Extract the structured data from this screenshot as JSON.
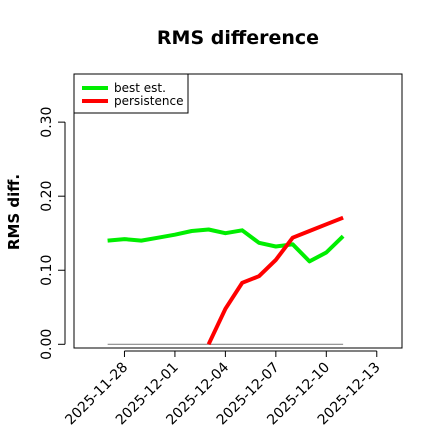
{
  "chart_data": {
    "type": "line",
    "title": "RMS difference",
    "ylabel": "RMS diff.",
    "xlabel": "",
    "ylim": [
      -0.005,
      0.365
    ],
    "xlim": [
      "2025-11-25T00:00",
      "2025-12-14T12:00"
    ],
    "yticks": [
      0.0,
      0.1,
      0.2,
      0.3
    ],
    "ytick_labels": [
      "0.00",
      "0.10",
      "0.20",
      "0.30"
    ],
    "xticks": [
      "2025-11-28",
      "2025-12-01",
      "2025-12-04",
      "2025-12-07",
      "2025-12-10",
      "2025-12-13"
    ],
    "xtick_labels": [
      "2025-11-28",
      "2025-12-01",
      "2025-12-04",
      "2025-12-07",
      "2025-12-10",
      "2025-12-13"
    ],
    "legend_position": "top-left",
    "baseline": {
      "value": 0.0,
      "x_range": [
        "2025-11-27T00:00",
        "2025-12-11T00:00"
      ],
      "color": "#888888"
    },
    "series": [
      {
        "name": "best est.",
        "color": "#00ee00",
        "x": [
          "2025-11-27T00:00",
          "2025-11-28T00:00",
          "2025-11-29T00:00",
          "2025-11-30T00:00",
          "2025-12-01T00:00",
          "2025-12-02T00:00",
          "2025-12-03T00:00",
          "2025-12-04T00:00",
          "2025-12-05T00:00",
          "2025-12-06T00:00",
          "2025-12-07T00:00",
          "2025-12-08T00:00",
          "2025-12-09T00:00",
          "2025-12-10T00:00",
          "2025-12-11T00:00"
        ],
        "y": [
          0.14,
          0.142,
          0.14,
          0.144,
          0.148,
          0.153,
          0.155,
          0.15,
          0.154,
          0.137,
          0.132,
          0.135,
          0.112,
          0.124,
          0.146
        ]
      },
      {
        "name": "persistence",
        "color": "#ff0000",
        "x": [
          "2025-12-03T00:00",
          "2025-12-04T00:00",
          "2025-12-05T00:00",
          "2025-12-06T00:00",
          "2025-12-07T00:00",
          "2025-12-08T00:00",
          "2025-12-09T00:00",
          "2025-12-10T00:00",
          "2025-12-11T00:00"
        ],
        "y": [
          0.0,
          0.048,
          0.083,
          0.092,
          0.114,
          0.144,
          0.153,
          0.162,
          0.171
        ]
      }
    ]
  }
}
